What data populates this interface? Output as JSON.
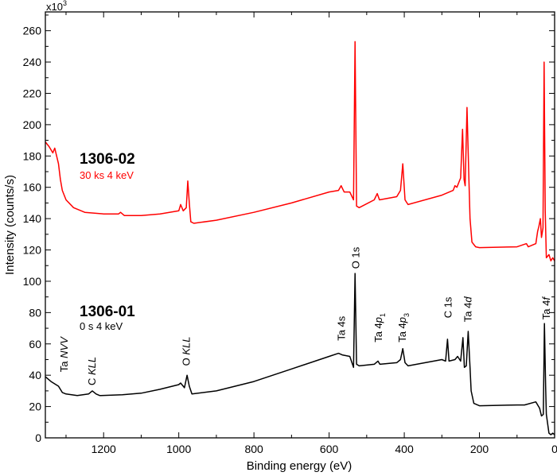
{
  "chart_data": {
    "type": "line",
    "xlabel": "Binding energy (eV)",
    "ylabel": "Intensity (counts/s)",
    "y_multiplier": "x10",
    "y_multiplier_exp": "3",
    "xlim": [
      1355,
      0
    ],
    "ylim": [
      0,
      272
    ],
    "x_reversed": true,
    "xticks": [
      1200,
      1000,
      800,
      600,
      400,
      200,
      0
    ],
    "yticks": [
      0,
      20,
      40,
      60,
      80,
      100,
      120,
      140,
      160,
      180,
      200,
      220,
      240,
      260
    ],
    "grid": false,
    "series": [
      {
        "name": "1306-02",
        "condition": "30 ks 4 keV",
        "color": "#ff0000",
        "points": [
          [
            1355,
            189
          ],
          [
            1345,
            186
          ],
          [
            1335,
            182
          ],
          [
            1330,
            185
          ],
          [
            1320,
            175
          ],
          [
            1315,
            165
          ],
          [
            1310,
            158
          ],
          [
            1300,
            152
          ],
          [
            1280,
            147
          ],
          [
            1250,
            144
          ],
          [
            1200,
            143
          ],
          [
            1160,
            143
          ],
          [
            1155,
            144
          ],
          [
            1145,
            142
          ],
          [
            1100,
            142
          ],
          [
            1050,
            143
          ],
          [
            1000,
            145
          ],
          [
            995,
            149
          ],
          [
            988,
            145
          ],
          [
            980,
            147
          ],
          [
            976,
            164
          ],
          [
            972,
            150
          ],
          [
            968,
            138
          ],
          [
            960,
            137
          ],
          [
            900,
            139
          ],
          [
            800,
            144
          ],
          [
            700,
            150
          ],
          [
            600,
            157
          ],
          [
            575,
            158
          ],
          [
            568,
            161
          ],
          [
            560,
            157
          ],
          [
            545,
            157
          ],
          [
            535,
            152
          ],
          [
            531,
            253
          ],
          [
            527,
            148
          ],
          [
            520,
            147
          ],
          [
            480,
            152
          ],
          [
            472,
            156
          ],
          [
            466,
            152
          ],
          [
            420,
            154
          ],
          [
            410,
            158
          ],
          [
            404,
            175
          ],
          [
            398,
            152
          ],
          [
            390,
            149
          ],
          [
            300,
            155
          ],
          [
            270,
            158
          ],
          [
            265,
            161
          ],
          [
            260,
            160
          ],
          [
            250,
            166
          ],
          [
            245,
            197
          ],
          [
            241,
            165
          ],
          [
            238,
            161
          ],
          [
            233,
            211
          ],
          [
            228,
            165
          ],
          [
            225,
            140
          ],
          [
            220,
            125
          ],
          [
            210,
            122
          ],
          [
            200,
            121.5
          ],
          [
            100,
            122
          ],
          [
            75,
            124
          ],
          [
            70,
            122
          ],
          [
            50,
            124
          ],
          [
            45,
            132
          ],
          [
            42,
            135
          ],
          [
            38,
            140
          ],
          [
            35,
            128
          ],
          [
            31,
            134
          ],
          [
            28,
            240
          ],
          [
            25,
            145
          ],
          [
            22,
            115
          ],
          [
            15,
            117
          ],
          [
            10,
            113
          ],
          [
            5,
            115
          ],
          [
            0,
            113
          ]
        ]
      },
      {
        "name": "1306-01",
        "condition": "0 s 4 keV",
        "color": "#000000",
        "points": [
          [
            1355,
            39
          ],
          [
            1340,
            36
          ],
          [
            1320,
            33
          ],
          [
            1310,
            29
          ],
          [
            1300,
            28
          ],
          [
            1270,
            27
          ],
          [
            1240,
            28
          ],
          [
            1230,
            30
          ],
          [
            1220,
            28
          ],
          [
            1210,
            27
          ],
          [
            1150,
            27.5
          ],
          [
            1100,
            28.5
          ],
          [
            1050,
            31
          ],
          [
            1000,
            34
          ],
          [
            995,
            35
          ],
          [
            985,
            32
          ],
          [
            978,
            40
          ],
          [
            972,
            33
          ],
          [
            965,
            28
          ],
          [
            900,
            30
          ],
          [
            800,
            36
          ],
          [
            700,
            44
          ],
          [
            600,
            52
          ],
          [
            575,
            54
          ],
          [
            565,
            53
          ],
          [
            545,
            52
          ],
          [
            535,
            45
          ],
          [
            531,
            105
          ],
          [
            527,
            47
          ],
          [
            520,
            46
          ],
          [
            480,
            47
          ],
          [
            470,
            49
          ],
          [
            465,
            47
          ],
          [
            420,
            48
          ],
          [
            410,
            50
          ],
          [
            404,
            57
          ],
          [
            398,
            48
          ],
          [
            390,
            46
          ],
          [
            300,
            50
          ],
          [
            290,
            49
          ],
          [
            285,
            63
          ],
          [
            281,
            49
          ],
          [
            265,
            50
          ],
          [
            258,
            52
          ],
          [
            250,
            49
          ],
          [
            244,
            64
          ],
          [
            240,
            45
          ],
          [
            235,
            46
          ],
          [
            230,
            68
          ],
          [
            225,
            45
          ],
          [
            222,
            30
          ],
          [
            215,
            22
          ],
          [
            200,
            20.5
          ],
          [
            100,
            21
          ],
          [
            80,
            21
          ],
          [
            50,
            23
          ],
          [
            45,
            21
          ],
          [
            40,
            19
          ],
          [
            35,
            14
          ],
          [
            30,
            15
          ],
          [
            27,
            73
          ],
          [
            24,
            33
          ],
          [
            22,
            15
          ],
          [
            15,
            3
          ],
          [
            10,
            2
          ],
          [
            5,
            3
          ],
          [
            0,
            2
          ]
        ]
      }
    ],
    "annotations": [
      {
        "main": "Ta ",
        "italic": "NVV",
        "sub": "",
        "energy": 1306,
        "intensity": 42
      },
      {
        "main": "C ",
        "italic": "KLL",
        "sub": "",
        "energy": 1232,
        "intensity": 33.5
      },
      {
        "main": "O ",
        "italic": "KLL",
        "sub": "",
        "energy": 981,
        "intensity": 46
      },
      {
        "main": "Ta 4s",
        "italic": "",
        "sub": "",
        "energy": 568,
        "intensity": 62
      },
      {
        "main": "O 1s",
        "italic": "",
        "sub": "",
        "energy": 530,
        "intensity": 108
      },
      {
        "main": "Ta 4",
        "italic": "p",
        "sub": "1",
        "energy": 470,
        "intensity": 61
      },
      {
        "main": "Ta 4",
        "italic": "p",
        "sub": "3",
        "energy": 406,
        "intensity": 61
      },
      {
        "main": "C 1s",
        "italic": "",
        "sub": "",
        "energy": 285,
        "intensity": 76.5
      },
      {
        "main": "Ta 4",
        "italic": "d",
        "sub": "",
        "energy": 232,
        "intensity": 74
      },
      {
        "main": "Ta 4",
        "italic": "f",
        "sub": "",
        "energy": 23,
        "intensity": 75.5
      }
    ]
  }
}
